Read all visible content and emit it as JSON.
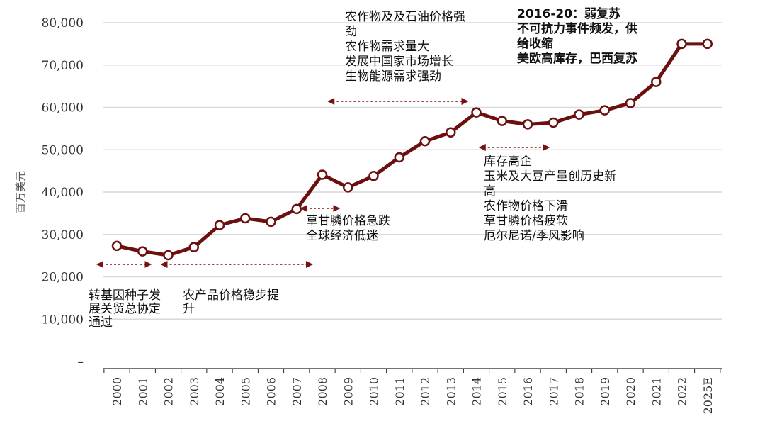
{
  "chart_data": {
    "type": "line",
    "x": [
      "2000",
      "2001",
      "2002",
      "2003",
      "2004",
      "2005",
      "2006",
      "2007",
      "2008",
      "2009",
      "2010",
      "2011",
      "2012",
      "2013",
      "2014",
      "2015",
      "2016",
      "2017",
      "2018",
      "2019",
      "2020",
      "2021",
      "2022",
      "2025E"
    ],
    "series": [
      {
        "values": [
          27300,
          26000,
          25100,
          27000,
          32200,
          33800,
          33000,
          36000,
          44100,
          41100,
          43800,
          48200,
          52000,
          54100,
          58800,
          56800,
          56000,
          56400,
          58300,
          59300,
          61000,
          66000,
          75000,
          75000
        ]
      }
    ],
    "ylabel": "百万美元",
    "ylim": [
      0,
      80000
    ],
    "yticks": [
      0,
      10000,
      20000,
      30000,
      40000,
      50000,
      60000,
      70000,
      80000
    ],
    "ytick_labels": [
      "–",
      "10,000",
      "20,000",
      "30,000",
      "40,000",
      "50,000",
      "60,000",
      "70,000",
      "80,000"
    ],
    "grid": "horizontal",
    "colors": {
      "line": "#6b0f0f",
      "arrow": "#7a1010",
      "grid": "#d9d9d9"
    },
    "annotations": [
      {
        "id": "gm-seed",
        "lines": [
          "转基因种子发",
          "展关贸总协定",
          "通过"
        ],
        "bold": false,
        "arrow": {
          "from": "2000",
          "to": "2001"
        }
      },
      {
        "id": "steady-rise",
        "lines": [
          "农产品价格稳步提",
          "升"
        ],
        "bold": false,
        "arrow": {
          "from": "2002",
          "to": "2008"
        }
      },
      {
        "id": "glyphosate-crash",
        "lines": [
          "草甘膦价格急跌",
          "全球经济低迷"
        ],
        "bold": false,
        "arrow": {
          "from": "2008",
          "to": "2009"
        }
      },
      {
        "id": "boom",
        "lines": [
          "农作物及及石油价格强",
          "劲",
          "农作物需求量大",
          "发展中国家市场增长",
          "生物能源需求强劲"
        ],
        "bold": false,
        "arrow": {
          "from": "2009",
          "to": "2014"
        }
      },
      {
        "id": "high-stock",
        "lines": [
          "库存高企",
          "玉米及大豆产量创历史新",
          "高",
          "农作物价格下滑",
          "草甘膦价格疲软",
          "厄尔尼诺/季风影响"
        ],
        "bold": false,
        "arrow": {
          "from": "2015",
          "to": "2017"
        }
      },
      {
        "id": "weak-recovery",
        "lines": [
          "2016-20：弱复苏",
          "不可抗力事件频发，供",
          "给收缩",
          "美欧高库存，巴西复苏"
        ],
        "bold": true,
        "arrow": null
      }
    ]
  }
}
